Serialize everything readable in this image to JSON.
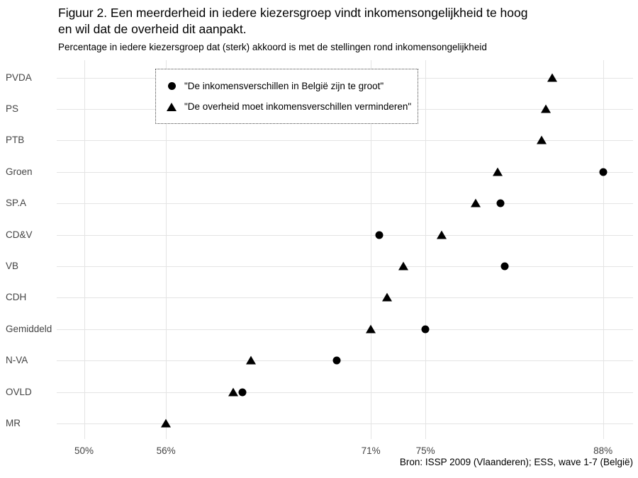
{
  "header": {
    "title_line1": "Figuur 2. Een meerderheid in iedere kiezersgroep vindt inkomensongelijkheid te hoog",
    "title_line2": "en wil dat de overheid dit aanpakt.",
    "subtitle": "Percentage in iedere kiezersgroep dat (sterk) akkoord is met de stellingen rond inkomensongelijkheid"
  },
  "legend": {
    "items": [
      {
        "marker": "circle",
        "label": "\"De inkomensverschillen in België zijn te groot\""
      },
      {
        "marker": "triangle",
        "label": "\"De overheid moet inkomensverschillen verminderen\""
      }
    ]
  },
  "footer": {
    "source": "Bron: ISSP 2009 (Vlaanderen); ESS, wave 1-7 (België)"
  },
  "colors": {
    "marker": "#000000",
    "gridline": "#e4e4e4",
    "axis_text": "#444444",
    "text": "#000000"
  },
  "chart_data": {
    "type": "scatter",
    "orientation": "horizontal-dotplot",
    "title": "Figuur 2. Een meerderheid in iedere kiezersgroep vindt inkomensongelijkheid te hoog en wil dat de overheid dit aanpakt.",
    "subtitle": "Percentage in iedere kiezersgroep dat (sterk) akkoord is met de stellingen rond inkomensongelijkheid",
    "source": "Bron: ISSP 2009 (Vlaanderen); ESS, wave 1-7 (België)",
    "categories": [
      "PVDA",
      "PS",
      "PTB",
      "Groen",
      "SP.A",
      "CD&V",
      "VB",
      "CDH",
      "Gemiddeld",
      "N-VA",
      "OVLD",
      "MR"
    ],
    "series": [
      {
        "name": "\"De inkomensverschillen in België zijn te groot\"",
        "marker": "circle",
        "values": [
          null,
          null,
          null,
          88,
          80.5,
          71.6,
          80.8,
          null,
          75,
          68.5,
          61.6,
          null
        ]
      },
      {
        "name": "\"De overheid moet inkomensverschillen verminderen\"",
        "marker": "triangle",
        "values": [
          84.3,
          83.8,
          83.5,
          80.3,
          78.7,
          76.2,
          73.4,
          72.2,
          71,
          62.2,
          60.9,
          56
        ]
      }
    ],
    "x_ticks": [
      {
        "label": "50%",
        "value": 50
      },
      {
        "label": "56%",
        "value": 56
      },
      {
        "label": "71%",
        "value": 71
      },
      {
        "label": "75%",
        "value": 75
      },
      {
        "label": "88%",
        "value": 88
      }
    ],
    "xlim": [
      48,
      90.2
    ],
    "grid": true,
    "legend_position": "inset-top-left"
  }
}
